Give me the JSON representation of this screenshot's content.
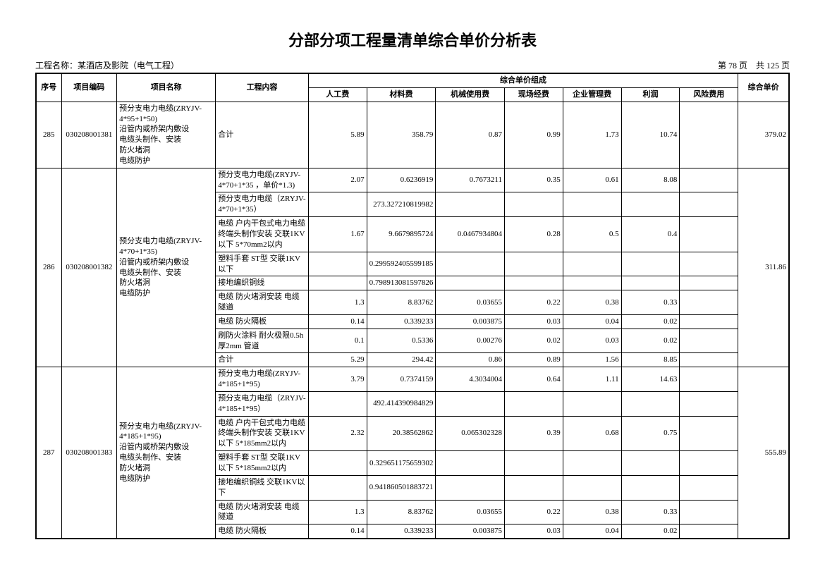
{
  "title": "分部分项工程量清单综合单价分析表",
  "project_label": "工程名称：",
  "project_name": "某酒店及影院（电气工程）",
  "page_current_label": "第",
  "page_current": "78",
  "page_unit": "页",
  "page_total_label": "共",
  "page_total": "125",
  "headers": {
    "seq": "序号",
    "code": "项目编码",
    "name": "项目名称",
    "content": "工程内容",
    "group": "综合单价组成",
    "labor": "人工费",
    "material": "材料费",
    "machine": "机械使用费",
    "site": "现场经费",
    "mgmt": "企业管理费",
    "profit": "利润",
    "risk": "风险费用",
    "unit_price": "综合单价"
  },
  "rows": [
    {
      "seq": "285",
      "code": "030208001381",
      "name": "预分支电力电缆(ZRYJV-4*95+1*50)\n沿管内或桥架内敷设\n电缆头制作、安装\n防火堵洞\n电缆防护",
      "unit_price": "379.02",
      "subrows": [
        {
          "content": "合计",
          "labor": "5.89",
          "material": "358.79",
          "machine": "0.87",
          "site": "0.99",
          "mgmt": "1.73",
          "profit": "10.74",
          "risk": ""
        }
      ]
    },
    {
      "seq": "286",
      "code": "030208001382",
      "name": "预分支电力电缆(ZRYJV-4*70+1*35)\n沿管内或桥架内敷设\n电缆头制作、安装\n防火堵洞\n电缆防护",
      "unit_price": "311.86",
      "subrows": [
        {
          "content": "预分支电力电缆(ZRYJV-4*70+1*35 ，单价*1.3)",
          "labor": "2.07",
          "material": "0.6236919",
          "machine": "0.7673211",
          "site": "0.35",
          "mgmt": "0.61",
          "profit": "8.08",
          "risk": ""
        },
        {
          "content": "预分支电力电缆（ZRYJV-4*70+1*35）",
          "labor": "",
          "material": "273.327210819982",
          "machine": "",
          "site": "",
          "mgmt": "",
          "profit": "",
          "risk": ""
        },
        {
          "content": "电缆 户内干包式电力电缆终端头制作安装 交联1KV以下 5*70mm2以内",
          "labor": "1.67",
          "material": "9.6679895724",
          "machine": "0.0467934804",
          "site": "0.28",
          "mgmt": "0.5",
          "profit": "0.4",
          "risk": ""
        },
        {
          "content": "塑料手套 ST型 交联1KV以下",
          "labor": "",
          "material": "0.299592405599185",
          "machine": "",
          "site": "",
          "mgmt": "",
          "profit": "",
          "risk": ""
        },
        {
          "content": "接地编织铜线",
          "labor": "",
          "material": "0.798913081597826",
          "machine": "",
          "site": "",
          "mgmt": "",
          "profit": "",
          "risk": ""
        },
        {
          "content": "电缆 防火堵洞安装 电缆隧道",
          "labor": "1.3",
          "material": "8.83762",
          "machine": "0.03655",
          "site": "0.22",
          "mgmt": "0.38",
          "profit": "0.33",
          "risk": ""
        },
        {
          "content": "电缆 防火隔板",
          "labor": "0.14",
          "material": "0.339233",
          "machine": "0.003875",
          "site": "0.03",
          "mgmt": "0.04",
          "profit": "0.02",
          "risk": ""
        },
        {
          "content": "刷防火涂料 耐火极限0.5h 厚2mm 管道",
          "labor": "0.1",
          "material": "0.5336",
          "machine": "0.00276",
          "site": "0.02",
          "mgmt": "0.03",
          "profit": "0.02",
          "risk": ""
        },
        {
          "content": "合计",
          "labor": "5.29",
          "material": "294.42",
          "machine": "0.86",
          "site": "0.89",
          "mgmt": "1.56",
          "profit": "8.85",
          "risk": ""
        }
      ]
    },
    {
      "seq": "287",
      "code": "030208001383",
      "name": "预分支电力电缆(ZRYJV-4*185+1*95)\n沿管内或桥架内敷设\n电缆头制作、安装\n防火堵洞\n电缆防护",
      "unit_price": "555.89",
      "subrows": [
        {
          "content": "预分支电力电缆(ZRYJV-4*185+1*95)",
          "labor": "3.79",
          "material": "0.7374159",
          "machine": "4.3034004",
          "site": "0.64",
          "mgmt": "1.11",
          "profit": "14.63",
          "risk": ""
        },
        {
          "content": "预分支电力电缆（ZRYJV-4*185+1*95）",
          "labor": "",
          "material": "492.414390984829",
          "machine": "",
          "site": "",
          "mgmt": "",
          "profit": "",
          "risk": ""
        },
        {
          "content": "电缆 户内干包式电力电缆终端头制作安装 交联1KV以下 5*185mm2以内",
          "labor": "2.32",
          "material": "20.38562862",
          "machine": "0.065302328",
          "site": "0.39",
          "mgmt": "0.68",
          "profit": "0.75",
          "risk": ""
        },
        {
          "content": "塑料手套 ST型 交联1KV以下 5*185mm2以内",
          "labor": "",
          "material": "0.329651175659302",
          "machine": "",
          "site": "",
          "mgmt": "",
          "profit": "",
          "risk": ""
        },
        {
          "content": "接地编织铜线 交联1KV以下",
          "labor": "",
          "material": "0.941860501883721",
          "machine": "",
          "site": "",
          "mgmt": "",
          "profit": "",
          "risk": ""
        },
        {
          "content": "电缆 防火堵洞安装 电缆隧道",
          "labor": "1.3",
          "material": "8.83762",
          "machine": "0.03655",
          "site": "0.22",
          "mgmt": "0.38",
          "profit": "0.33",
          "risk": ""
        },
        {
          "content": "电缆 防火隔板",
          "labor": "0.14",
          "material": "0.339233",
          "machine": "0.003875",
          "site": "0.03",
          "mgmt": "0.04",
          "profit": "0.02",
          "risk": ""
        }
      ]
    }
  ]
}
